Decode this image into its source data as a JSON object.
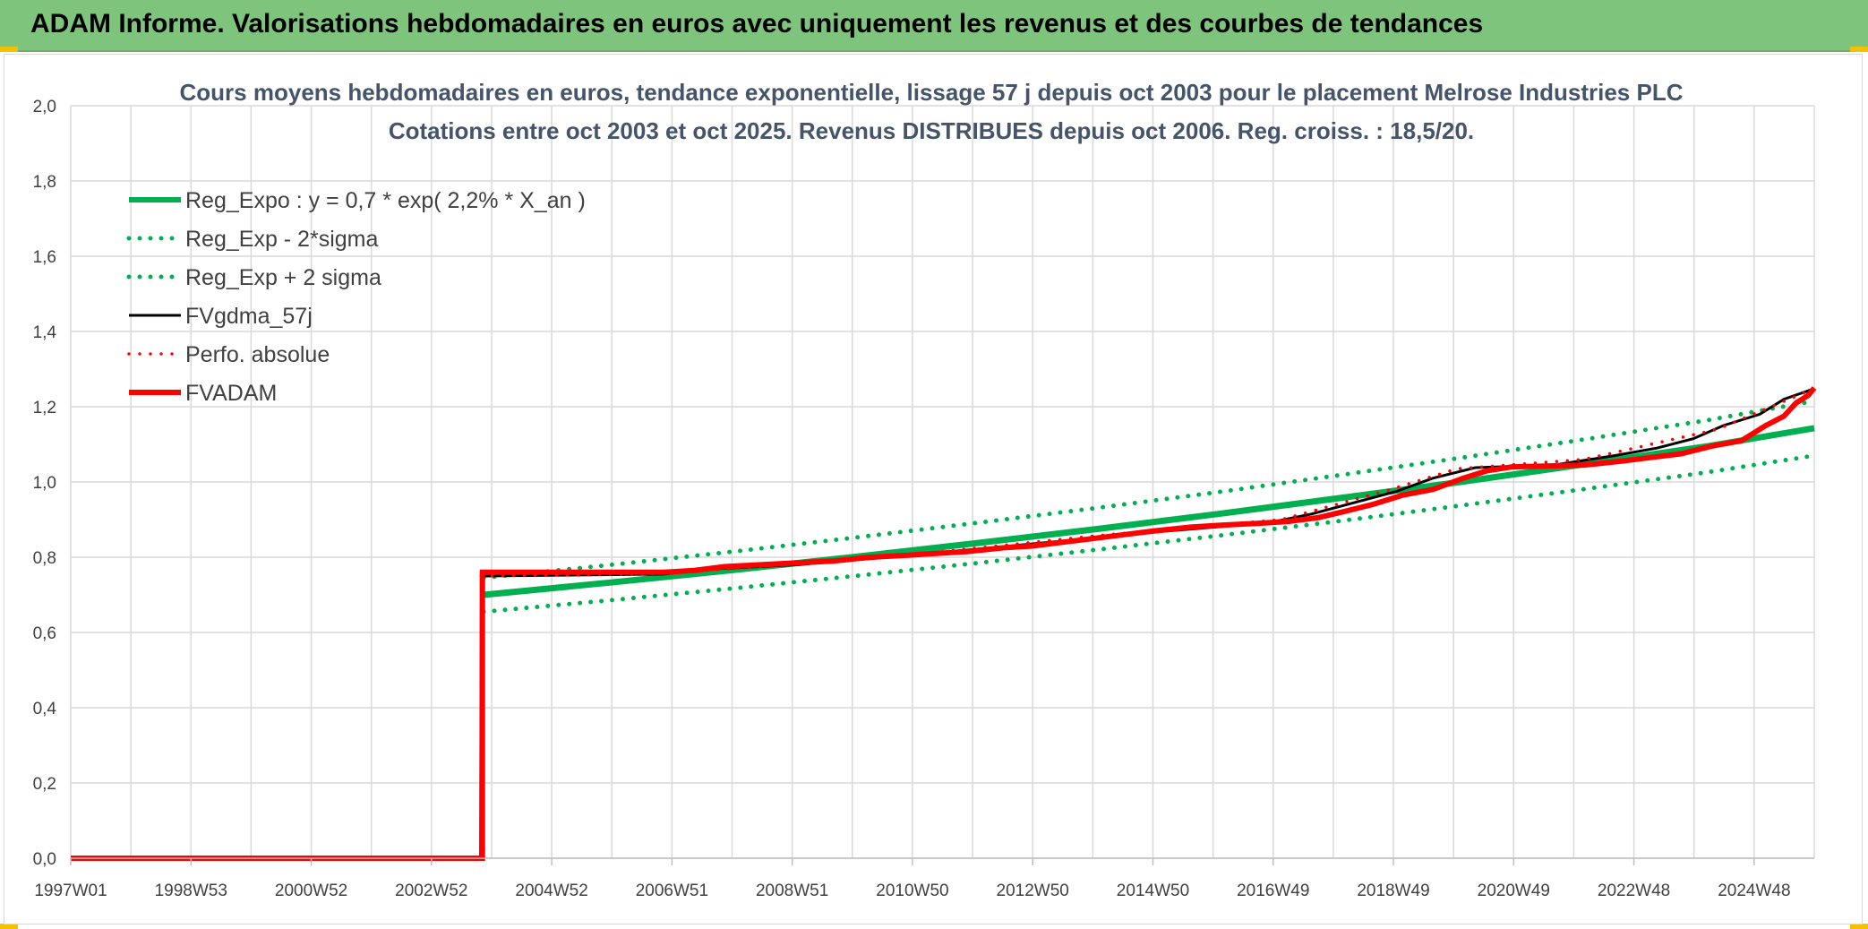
{
  "banner": {
    "title": "ADAM Informe. Valorisations hebdomadaires en euros avec uniquement les revenus et des courbes de tendances"
  },
  "chart_data": {
    "type": "line",
    "title": "Cours moyens hebdomadaires en euros, tendance exponentielle, lissage 57 j depuis oct 2003 pour le placement Melrose Industries PLC",
    "subtitle": "Cotations entre oct 2003 et oct 2025. Revenus DISTRIBUES depuis oct 2006. Reg. croiss. : 18,5/20.",
    "xlabel": "",
    "ylabel": "",
    "x_ticks": [
      "1997W01",
      "1998W53",
      "2000W52",
      "2002W52",
      "2004W52",
      "2006W51",
      "2008W51",
      "2010W50",
      "2012W50",
      "2014W50",
      "2016W49",
      "2018W49",
      "2020W49",
      "2022W48",
      "2024W48"
    ],
    "x_range": [
      1997.0,
      2025.8
    ],
    "y_ticks": [
      "0,0",
      "0,2",
      "0,4",
      "0,6",
      "0,8",
      "1,0",
      "1,2",
      "1,4",
      "1,6",
      "1,8",
      "2,0"
    ],
    "ylim": [
      0,
      2
    ],
    "grid": true,
    "legend_position": "top-left",
    "series": [
      {
        "name": "Reg_Expo : y = 0,7 * exp( 2,2% *  X_an )",
        "color": "#00b050",
        "style": "solid",
        "points": [
          [
            2003.82,
            0.7
          ],
          [
            2006.0,
            0.734
          ],
          [
            2008.0,
            0.767
          ],
          [
            2010.0,
            0.802
          ],
          [
            2012.0,
            0.838
          ],
          [
            2014.0,
            0.876
          ],
          [
            2016.0,
            0.916
          ],
          [
            2018.0,
            0.958
          ],
          [
            2020.0,
            1.001
          ],
          [
            2022.0,
            1.047
          ],
          [
            2024.0,
            1.094
          ],
          [
            2025.8,
            1.143
          ]
        ]
      },
      {
        "name": "Reg_Exp - 2*sigma",
        "color": "#00b050",
        "style": "dotted",
        "points": [
          [
            2003.82,
            0.655
          ],
          [
            2006.0,
            0.687
          ],
          [
            2008.0,
            0.718
          ],
          [
            2010.0,
            0.751
          ],
          [
            2012.0,
            0.785
          ],
          [
            2014.0,
            0.821
          ],
          [
            2016.0,
            0.858
          ],
          [
            2018.0,
            0.897
          ],
          [
            2020.0,
            0.938
          ],
          [
            2022.0,
            0.981
          ],
          [
            2024.0,
            1.025
          ],
          [
            2025.8,
            1.07
          ]
        ]
      },
      {
        "name": "Reg_Exp + 2 sigma",
        "color": "#00b050",
        "style": "dotted",
        "points": [
          [
            2003.82,
            0.745
          ],
          [
            2006.0,
            0.781
          ],
          [
            2008.0,
            0.816
          ],
          [
            2010.0,
            0.853
          ],
          [
            2012.0,
            0.892
          ],
          [
            2014.0,
            0.932
          ],
          [
            2016.0,
            0.974
          ],
          [
            2018.0,
            1.019
          ],
          [
            2020.0,
            1.065
          ],
          [
            2022.0,
            1.113
          ],
          [
            2024.0,
            1.163
          ],
          [
            2025.8,
            1.215
          ]
        ]
      },
      {
        "name": "FVgdma_57j",
        "color": "#000000",
        "style": "solid",
        "points": [
          [
            1997.0,
            0.0
          ],
          [
            2003.77,
            0.0
          ],
          [
            2003.78,
            0.75
          ],
          [
            2006.8,
            0.755
          ],
          [
            2007.5,
            0.768
          ],
          [
            2009.0,
            0.78
          ],
          [
            2010.5,
            0.8
          ],
          [
            2012.0,
            0.822
          ],
          [
            2013.5,
            0.845
          ],
          [
            2015.0,
            0.868
          ],
          [
            2016.8,
            0.892
          ],
          [
            2017.5,
            0.915
          ],
          [
            2018.2,
            0.945
          ],
          [
            2018.9,
            0.975
          ],
          [
            2019.5,
            1.01
          ],
          [
            2020.2,
            1.038
          ],
          [
            2021.5,
            1.045
          ],
          [
            2022.5,
            1.07
          ],
          [
            2023.2,
            1.09
          ],
          [
            2023.8,
            1.115
          ],
          [
            2024.3,
            1.15
          ],
          [
            2024.9,
            1.18
          ],
          [
            2025.3,
            1.22
          ],
          [
            2025.75,
            1.245
          ]
        ]
      },
      {
        "name": "Perfo. absolue",
        "color": "#ff0000",
        "style": "dotted",
        "points": [
          [
            2003.78,
            0.75
          ],
          [
            2006.8,
            0.757
          ],
          [
            2010.5,
            0.8
          ],
          [
            2014.0,
            0.858
          ],
          [
            2017.0,
            0.9
          ],
          [
            2018.8,
            0.98
          ],
          [
            2019.9,
            1.035
          ],
          [
            2022.0,
            1.06
          ],
          [
            2024.2,
            1.14
          ],
          [
            2025.75,
            1.245
          ]
        ]
      },
      {
        "name": "FVADAM",
        "color": "#ff0000",
        "style": "step",
        "points": [
          [
            1997.0,
            0.0
          ],
          [
            2003.8,
            0.0
          ],
          [
            2003.8,
            0.76
          ],
          [
            2006.8,
            0.76
          ],
          [
            2007.3,
            0.765
          ],
          [
            2007.8,
            0.775
          ],
          [
            2008.4,
            0.78
          ],
          [
            2009.0,
            0.785
          ],
          [
            2009.6,
            0.79
          ],
          [
            2010.2,
            0.8
          ],
          [
            2010.8,
            0.805
          ],
          [
            2011.3,
            0.81
          ],
          [
            2011.8,
            0.815
          ],
          [
            2012.4,
            0.825
          ],
          [
            2012.9,
            0.83
          ],
          [
            2013.4,
            0.84
          ],
          [
            2013.9,
            0.85
          ],
          [
            2014.4,
            0.86
          ],
          [
            2014.9,
            0.87
          ],
          [
            2015.5,
            0.88
          ],
          [
            2016.0,
            0.885
          ],
          [
            2016.6,
            0.89
          ],
          [
            2017.1,
            0.895
          ],
          [
            2017.6,
            0.905
          ],
          [
            2018.0,
            0.92
          ],
          [
            2018.5,
            0.94
          ],
          [
            2019.0,
            0.965
          ],
          [
            2019.5,
            0.98
          ],
          [
            2020.0,
            1.01
          ],
          [
            2020.4,
            1.03
          ],
          [
            2020.8,
            1.04
          ],
          [
            2022.0,
            1.045
          ],
          [
            2022.6,
            1.055
          ],
          [
            2023.1,
            1.065
          ],
          [
            2023.6,
            1.075
          ],
          [
            2024.1,
            1.095
          ],
          [
            2024.6,
            1.11
          ],
          [
            2025.0,
            1.15
          ],
          [
            2025.3,
            1.175
          ],
          [
            2025.5,
            1.21
          ],
          [
            2025.7,
            1.23
          ],
          [
            2025.8,
            1.25
          ]
        ]
      }
    ]
  }
}
